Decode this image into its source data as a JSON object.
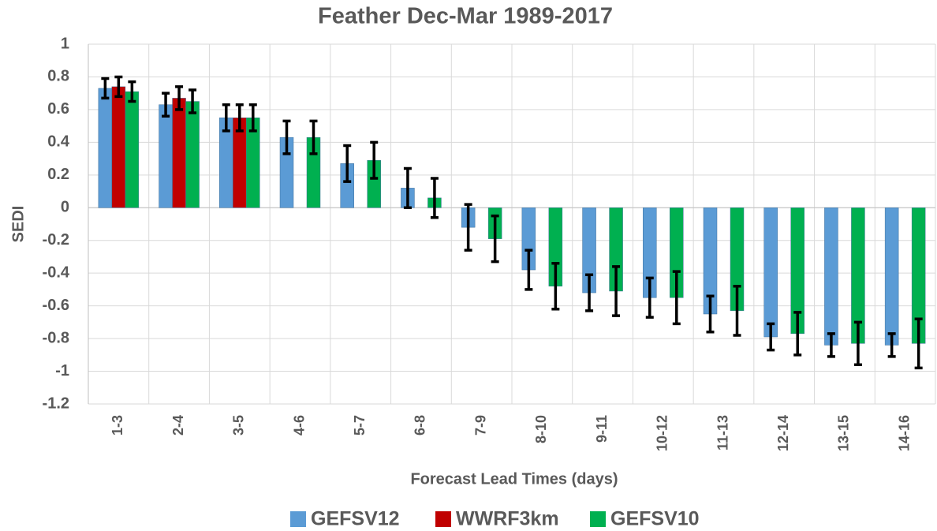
{
  "chart_data": {
    "type": "bar",
    "title": "Feather Dec-Mar 1989-2017",
    "ylabel": "SEDI",
    "xlabel": "Forecast Lead Times (days)",
    "categories": [
      "1-3",
      "2-4",
      "3-5",
      "4-6",
      "5-7",
      "6-8",
      "7-9",
      "8-10",
      "9-11",
      "10-12",
      "11-13",
      "12-14",
      "13-15",
      "14-16"
    ],
    "series": [
      {
        "name": "GEFSV12",
        "color": "#5b9bd5",
        "values": [
          0.73,
          0.63,
          0.55,
          0.43,
          0.27,
          0.12,
          -0.12,
          -0.38,
          -0.52,
          -0.55,
          -0.65,
          -0.79,
          -0.84,
          -0.84
        ],
        "errors": [
          0.06,
          0.07,
          0.08,
          0.1,
          0.11,
          0.12,
          0.14,
          0.12,
          0.11,
          0.12,
          0.11,
          0.08,
          0.07,
          0.07
        ]
      },
      {
        "name": "WWRF3km",
        "color": "#c00000",
        "values": [
          0.74,
          0.67,
          0.55,
          null,
          null,
          null,
          null,
          null,
          null,
          null,
          null,
          null,
          null,
          null
        ],
        "errors": [
          0.06,
          0.07,
          0.08,
          null,
          null,
          null,
          null,
          null,
          null,
          null,
          null,
          null,
          null,
          null
        ]
      },
      {
        "name": "GEFSV10",
        "color": "#00b050",
        "values": [
          0.71,
          0.65,
          0.55,
          0.43,
          0.29,
          0.06,
          -0.19,
          -0.48,
          -0.51,
          -0.55,
          -0.63,
          -0.77,
          -0.83,
          -0.83
        ],
        "errors": [
          0.06,
          0.07,
          0.08,
          0.1,
          0.11,
          0.12,
          0.14,
          0.14,
          0.15,
          0.16,
          0.15,
          0.13,
          0.13,
          0.15
        ]
      }
    ],
    "ylim": [
      -1.2,
      1
    ],
    "yticks": [
      -1.2,
      -1,
      -0.8,
      -0.6,
      -0.4,
      -0.2,
      0,
      0.2,
      0.4,
      0.6,
      0.8,
      1
    ],
    "grid": true,
    "legend": "bottom"
  }
}
